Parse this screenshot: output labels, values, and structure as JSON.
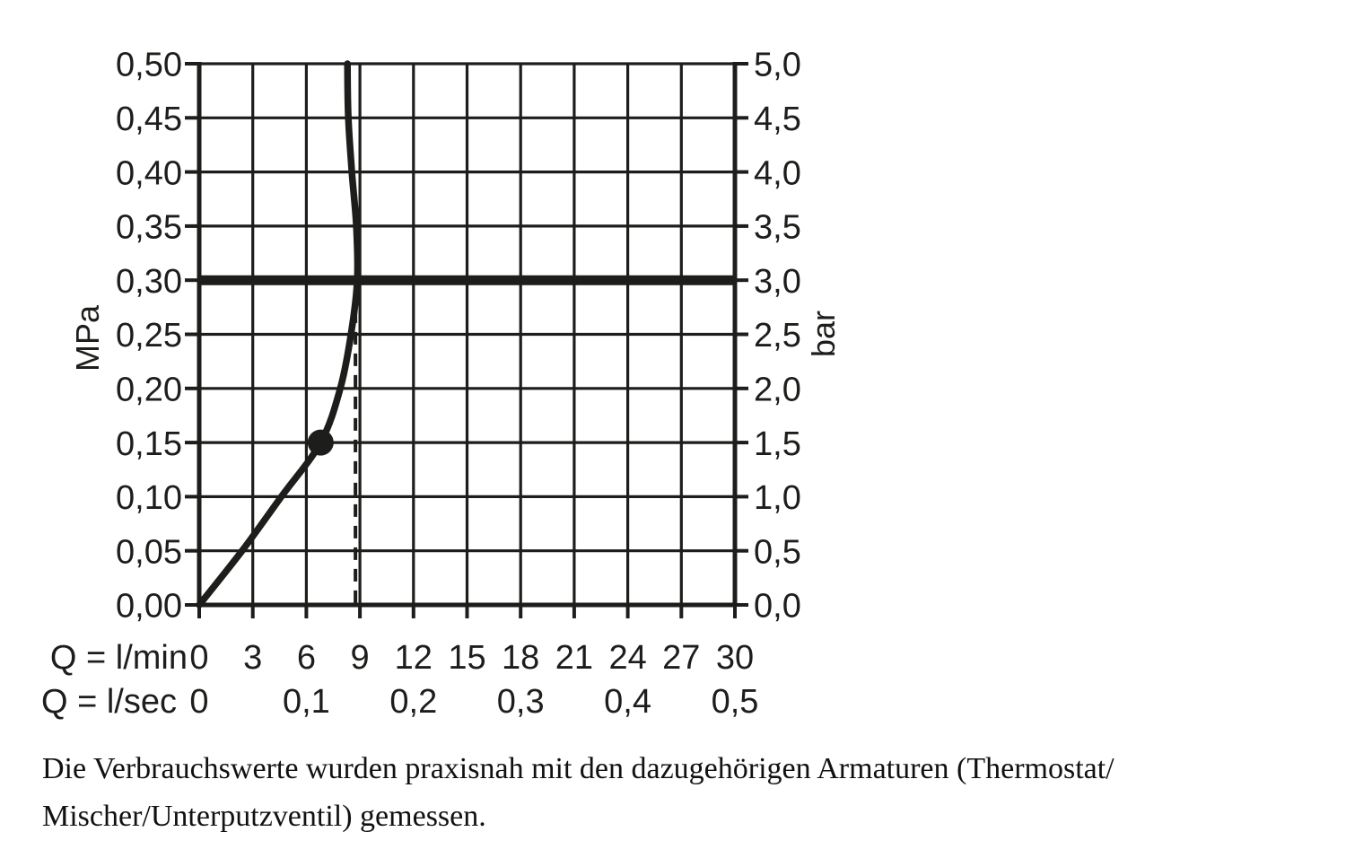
{
  "chart_data": {
    "type": "line",
    "title": "",
    "grid": true,
    "legend": null,
    "colors": {
      "ink": "#1d1d1b",
      "background": "#ffffff"
    },
    "x_axis": {
      "row1_label": "Q = l/min",
      "row2_label": "Q = l/sec",
      "range_lmin": [
        0,
        30
      ],
      "gridline_step_lmin": 3,
      "row1_ticks": [
        {
          "v": 0,
          "label": "0"
        },
        {
          "v": 3,
          "label": "3"
        },
        {
          "v": 6,
          "label": "6"
        },
        {
          "v": 9,
          "label": "9"
        },
        {
          "v": 12,
          "label": "12"
        },
        {
          "v": 15,
          "label": "15"
        },
        {
          "v": 18,
          "label": "18"
        },
        {
          "v": 21,
          "label": "21"
        },
        {
          "v": 24,
          "label": "24"
        },
        {
          "v": 27,
          "label": "27"
        },
        {
          "v": 30,
          "label": "30"
        }
      ],
      "row2_ticks": [
        {
          "v": 0,
          "label": "0"
        },
        {
          "v": 6,
          "label": "0,1"
        },
        {
          "v": 12,
          "label": "0,2"
        },
        {
          "v": 18,
          "label": "0,3"
        },
        {
          "v": 24,
          "label": "0,4"
        },
        {
          "v": 30,
          "label": "0,5"
        }
      ]
    },
    "y_axis_left": {
      "unit": "MPa",
      "range_mpa": [
        0,
        0.5
      ],
      "ticks": [
        {
          "v": 0.5,
          "label": "0,50"
        },
        {
          "v": 0.45,
          "label": "0,45"
        },
        {
          "v": 0.4,
          "label": "0,40"
        },
        {
          "v": 0.35,
          "label": "0,35"
        },
        {
          "v": 0.3,
          "label": "0,30"
        },
        {
          "v": 0.25,
          "label": "0,25"
        },
        {
          "v": 0.2,
          "label": "0,20"
        },
        {
          "v": 0.15,
          "label": "0,15"
        },
        {
          "v": 0.1,
          "label": "0,10"
        },
        {
          "v": 0.05,
          "label": "0,05"
        },
        {
          "v": 0.0,
          "label": "0,00"
        }
      ]
    },
    "y_axis_right": {
      "unit": "bar",
      "range_bar": [
        0,
        5
      ],
      "ticks": [
        {
          "v": 5.0,
          "label": "5,0"
        },
        {
          "v": 4.5,
          "label": "4,5"
        },
        {
          "v": 4.0,
          "label": "4,0"
        },
        {
          "v": 3.5,
          "label": "3,5"
        },
        {
          "v": 3.0,
          "label": "3,0"
        },
        {
          "v": 2.5,
          "label": "2,5"
        },
        {
          "v": 2.0,
          "label": "2,0"
        },
        {
          "v": 1.5,
          "label": "1,5"
        },
        {
          "v": 1.0,
          "label": "1,0"
        },
        {
          "v": 0.5,
          "label": "0,5"
        },
        {
          "v": 0.0,
          "label": "0,0"
        }
      ]
    },
    "series": [
      {
        "name": "flow-curve",
        "points_lmin_mpa": [
          [
            0,
            0.0
          ],
          [
            2.4,
            0.05
          ],
          [
            4.6,
            0.1
          ],
          [
            6.8,
            0.15
          ],
          [
            7.9,
            0.2
          ],
          [
            8.5,
            0.25
          ],
          [
            8.85,
            0.3
          ],
          [
            8.8,
            0.35
          ],
          [
            8.55,
            0.4
          ],
          [
            8.35,
            0.45
          ],
          [
            8.3,
            0.5
          ]
        ]
      }
    ],
    "annotations": {
      "bold_pressure_line_mpa": 0.3,
      "dashed_flow_line": {
        "x_lmin": 8.75,
        "from_mpa": 0,
        "to_mpa": 0.292
      },
      "operating_point": {
        "x_lmin": 6.8,
        "y_mpa": 0.15
      }
    }
  },
  "caption": {
    "lines": [
      "Die Verbrauchswerte wurden praxisnah mit den dazugehörigen Armaturen (Thermostat/",
      "Mischer/Unterputzventil) gemessen."
    ]
  }
}
